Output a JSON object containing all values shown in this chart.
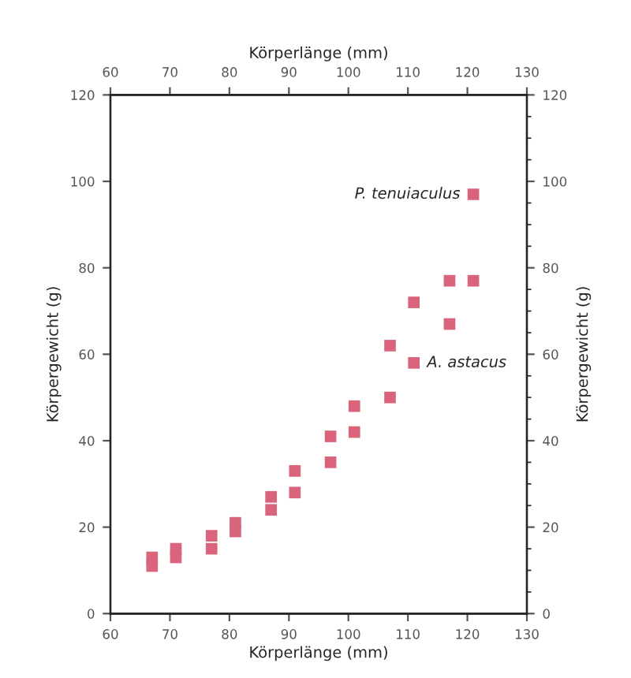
{
  "chart_data": {
    "type": "scatter",
    "xlabel": "Körperlänge (mm)",
    "x2label": "Körperlänge (mm)",
    "ylabel": "Körpergewicht (g)",
    "y2label": "Körpergewicht (g)",
    "xlim": [
      60,
      130
    ],
    "xticks": [
      60,
      70,
      80,
      90,
      100,
      110,
      120,
      130
    ],
    "x2lim": [
      60,
      130
    ],
    "x2ticks": [
      60,
      70,
      80,
      90,
      100,
      110,
      120,
      130
    ],
    "ylim": [
      0,
      120
    ],
    "yticks": [
      0,
      20,
      40,
      60,
      80,
      100,
      120
    ],
    "y2lim": [
      0,
      120
    ],
    "y2ticks": [
      0,
      20,
      40,
      60,
      80,
      100,
      120
    ],
    "marker": "square",
    "grid": false,
    "series": [
      {
        "color": "#d9647c",
        "x": [
          67,
          67,
          71,
          71,
          77,
          77,
          81,
          81,
          87,
          87,
          91,
          91,
          97,
          97,
          101,
          101,
          107,
          107,
          111,
          111,
          117,
          117,
          121,
          121
        ],
        "values": [
          13,
          11,
          15,
          13,
          18,
          15,
          21,
          19,
          27,
          24,
          33,
          28,
          41,
          35,
          48,
          42,
          62,
          50,
          72,
          58,
          77,
          67,
          77,
          97
        ]
      }
    ],
    "annotations": [
      {
        "text": "P. tenuiaculus",
        "x": 121,
        "y": 97
      },
      {
        "text": "A. astacus",
        "x": 111,
        "y": 58
      }
    ]
  }
}
